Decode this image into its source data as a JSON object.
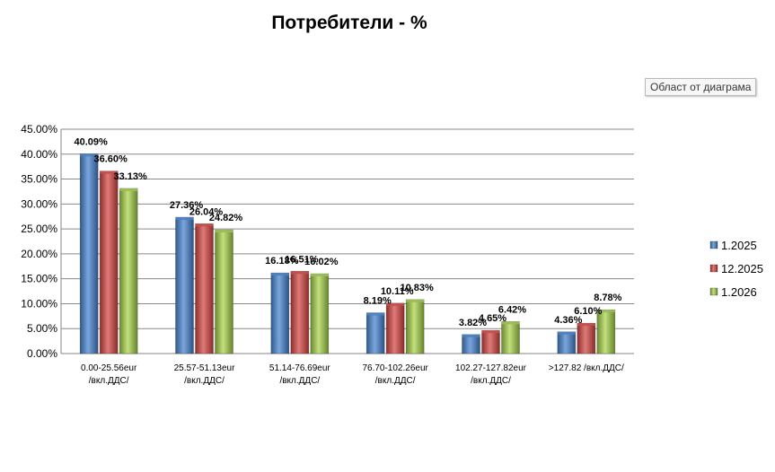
{
  "chart_data": {
    "type": "bar",
    "title": "Потребители - %",
    "categories": [
      [
        "0.00-25.56eur",
        "/вкл.ДДС/"
      ],
      [
        "25.57-51.13eur",
        "/вкл.ДДС/"
      ],
      [
        "51.14-76.69eur",
        "/вкл.ДДС/"
      ],
      [
        "76.70-102.26eur",
        "/вкл.ДДС/"
      ],
      [
        "102.27-127.82eur",
        "/вкл.ДДС/"
      ],
      [
        ">127.82 /вкл.ДДС/"
      ]
    ],
    "series": [
      {
        "name": "1.2025",
        "color": "#4f81bd",
        "values": [
          40.09,
          27.36,
          16.18,
          8.19,
          3.82,
          4.36
        ],
        "labels": [
          "40.09%",
          "27.36%",
          "16.18%",
          "8.19%",
          "3.82%",
          "4.36%"
        ]
      },
      {
        "name": "12.2025",
        "color": "#c0504d",
        "values": [
          36.6,
          26.04,
          16.51,
          10.11,
          4.65,
          6.1
        ],
        "labels": [
          "36.60%",
          "26.04%",
          "16.51%",
          "10.11%",
          "4.65%",
          "6.10%"
        ]
      },
      {
        "name": "1.2026",
        "color": "#9bbb59",
        "values": [
          33.13,
          24.82,
          16.02,
          10.83,
          6.42,
          8.78
        ],
        "labels": [
          "33.13%",
          "24.82%",
          "16.02%",
          "10.83%",
          "6.42%",
          "8.78%"
        ]
      }
    ],
    "y_ticks": [
      "0.00%",
      "5.00%",
      "10.00%",
      "15.00%",
      "20.00%",
      "25.00%",
      "30.00%",
      "35.00%",
      "40.00%",
      "45.00%"
    ],
    "ylim": [
      0,
      45
    ],
    "y_step": 5,
    "grid": true,
    "legend_position": "right"
  },
  "tooltip": "Област от диаграма"
}
